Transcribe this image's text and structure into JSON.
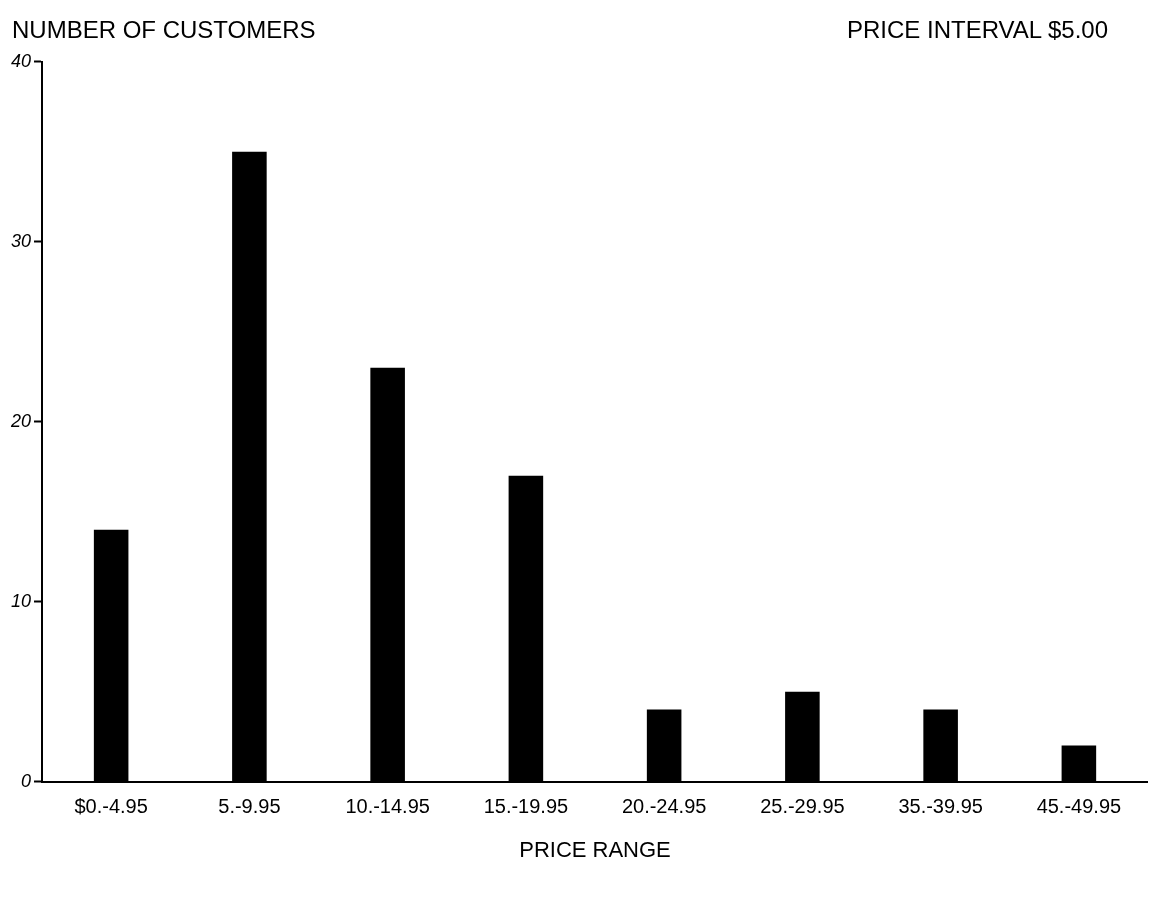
{
  "chart_data": {
    "type": "bar",
    "ylabel": "NUMBER OF CUSTOMERS",
    "xlabel": "PRICE RANGE",
    "annotations": [
      "PRICE INTERVAL $5.00"
    ],
    "categories": [
      "$0.-4.95",
      "5.-9.95",
      "10.-14.95",
      "15.-19.95",
      "20.-24.95",
      "25.-29.95",
      "35.-39.95",
      "45.-49.95"
    ],
    "values": [
      14,
      35,
      23,
      17,
      4,
      5,
      4,
      2
    ],
    "color": "#000000",
    "ylim": [
      0,
      40
    ],
    "yticks": [
      0,
      10,
      20,
      30,
      40
    ],
    "grid": false,
    "legend": false
  }
}
